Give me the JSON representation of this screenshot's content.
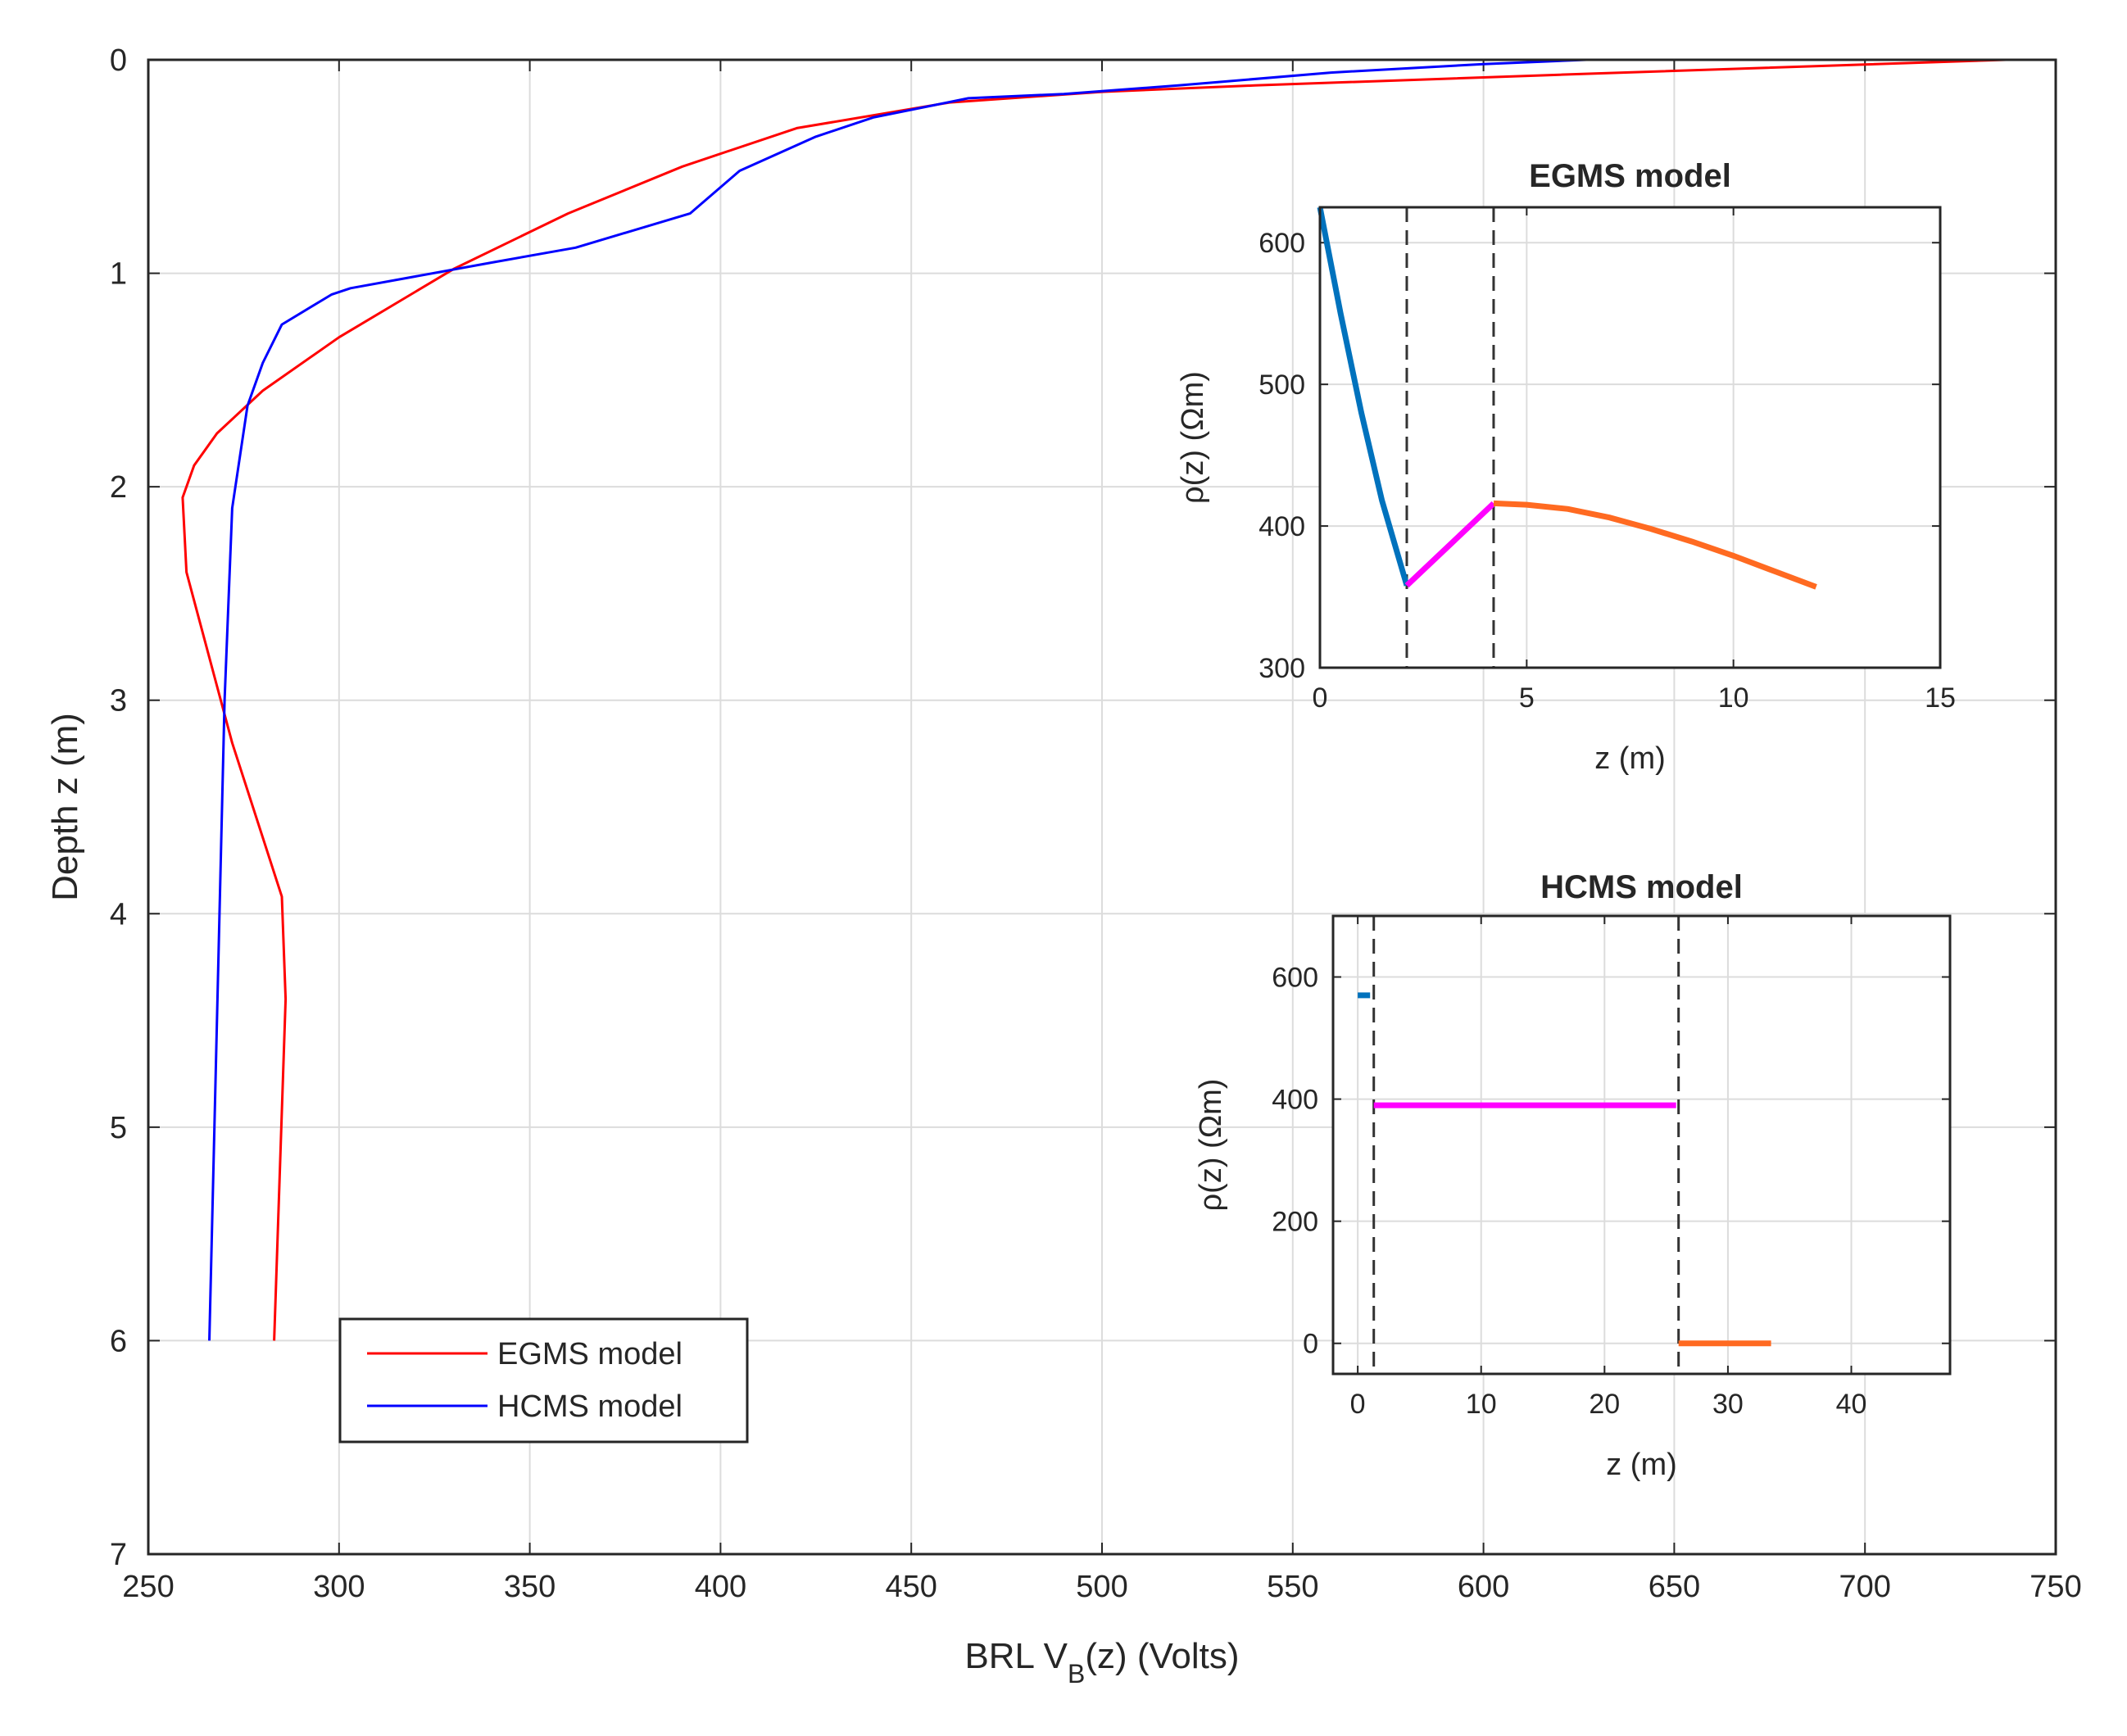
{
  "chart_data": [
    {
      "type": "line",
      "xlabel": "BRL V",
      "xlabel_sub": "B",
      "xlabel_tail": "(z)  (Volts)",
      "ylabel": "Depth z (m)",
      "xlim": [
        250,
        750
      ],
      "ylim": [
        0,
        7
      ],
      "y_reversed": true,
      "x_ticks": [
        "250",
        "300",
        "350",
        "400",
        "450",
        "500",
        "550",
        "600",
        "650",
        "700",
        "750"
      ],
      "y_ticks": [
        "0",
        "1",
        "2",
        "3",
        "4",
        "5",
        "6",
        "7"
      ],
      "grid": true,
      "legend_position": "bottom-left",
      "series": [
        {
          "name": "EGMS model",
          "color": "#ff0000",
          "x": [
            737,
            620,
            540,
            500,
            460,
            420,
            390,
            360,
            330,
            300,
            280,
            268,
            262,
            259,
            260,
            266,
            272,
            285,
            286,
            283
          ],
          "y": [
            0.0,
            0.07,
            0.12,
            0.15,
            0.2,
            0.32,
            0.5,
            0.72,
            0.98,
            1.3,
            1.55,
            1.75,
            1.9,
            2.05,
            2.4,
            2.8,
            3.2,
            3.92,
            4.4,
            6.0
          ]
        },
        {
          "name": "HCMS model",
          "color": "#0000ff",
          "x": [
            627,
            600,
            560,
            520,
            490,
            465,
            440,
            425,
            405,
            392,
            362,
            340,
            303,
            298,
            285,
            280,
            276,
            272,
            270,
            266
          ],
          "y": [
            0.0,
            0.02,
            0.06,
            0.12,
            0.16,
            0.18,
            0.27,
            0.36,
            0.52,
            0.72,
            0.88,
            0.95,
            1.07,
            1.1,
            1.24,
            1.42,
            1.62,
            2.1,
            3.0,
            6.0
          ]
        }
      ]
    },
    {
      "type": "line",
      "title": "EGMS model",
      "xlabel": "z (m)",
      "ylabel": "ρ(z)  (Ωm)",
      "xlim": [
        0,
        15
      ],
      "ylim": [
        300,
        625
      ],
      "x_ticks": [
        "0",
        "5",
        "10",
        "15"
      ],
      "y_ticks": [
        "300",
        "400",
        "500",
        "600"
      ],
      "grid": true,
      "boundaries": [
        2.1,
        4.2
      ],
      "series": [
        {
          "color": "#0072bd",
          "x": [
            0,
            0.5,
            1.0,
            1.5,
            2.1
          ],
          "y": [
            625,
            550,
            480,
            418,
            358
          ]
        },
        {
          "color": "#ff00ff",
          "x": [
            2.1,
            4.2
          ],
          "y": [
            358,
            416
          ]
        },
        {
          "color": "#ff6a21",
          "x": [
            4.2,
            5,
            6,
            7,
            8,
            9,
            10,
            11,
            12
          ],
          "y": [
            416,
            415,
            412,
            406,
            398,
            389,
            379,
            368,
            357
          ]
        }
      ]
    },
    {
      "type": "line",
      "title": "HCMS model",
      "xlabel": "z (m)",
      "ylabel": "ρ(z)  (Ωm)",
      "xlim": [
        -2,
        48
      ],
      "ylim": [
        -50,
        700
      ],
      "x_ticks": [
        "0",
        "10",
        "20",
        "30",
        "40"
      ],
      "y_ticks": [
        "0",
        "200",
        "400",
        "600"
      ],
      "grid": true,
      "boundaries": [
        1.3,
        26
      ],
      "series": [
        {
          "color": "#0072bd",
          "x": [
            0,
            1.0
          ],
          "y": [
            570,
            570
          ]
        },
        {
          "color": "#ff00ff",
          "x": [
            1.3,
            25.8
          ],
          "y": [
            390,
            390
          ]
        },
        {
          "color": "#ff6a21",
          "x": [
            26,
            33.5
          ],
          "y": [
            0,
            0
          ]
        }
      ]
    }
  ]
}
